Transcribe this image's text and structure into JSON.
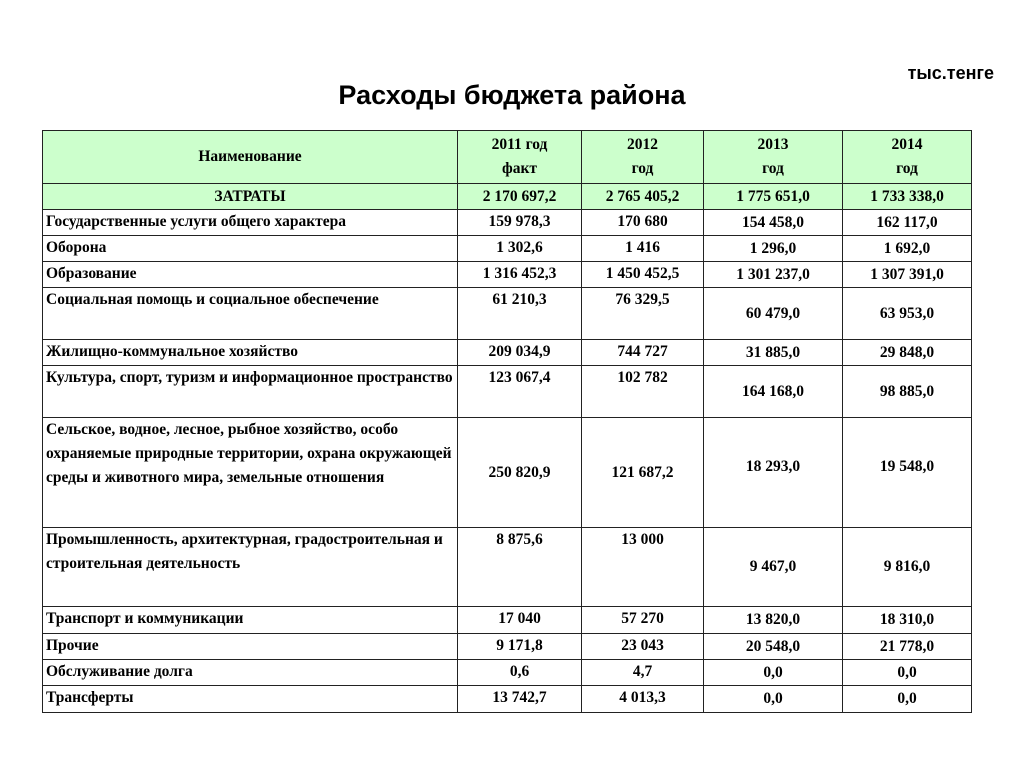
{
  "title": "Расходы бюджета района",
  "unit": "тыс.тенге",
  "table": {
    "header": {
      "name": "Наименование",
      "years": [
        {
          "year": "2011 год",
          "sub": "факт"
        },
        {
          "year": "2012",
          "sub": "год"
        },
        {
          "year": "2013",
          "sub": "год"
        },
        {
          "year": "2014",
          "sub": "год"
        }
      ]
    },
    "total": {
      "name": "ЗАТРАТЫ",
      "values": [
        "2 170 697,2",
        "2 765 405,2",
        "1 775 651,0",
        "1 733 338,0"
      ]
    },
    "rows": [
      {
        "name": "Государственные услуги общего характера",
        "values": [
          "159 978,3",
          "170 680",
          "154 458,0",
          "162 117,0"
        ]
      },
      {
        "name": "Оборона",
        "values": [
          "1 302,6",
          "1 416",
          "1 296,0",
          "1 692,0"
        ]
      },
      {
        "name": "Образование",
        "values": [
          "1 316 452,3",
          "1 450 452,5",
          "1 301 237,0",
          "1 307 391,0"
        ]
      },
      {
        "name": "Социальная помощь и социальное обеспечение",
        "values": [
          "61 210,3",
          "76 329,5",
          "60 479,0",
          "63 953,0"
        ]
      },
      {
        "name": "Жилищно-коммунальное хозяйство",
        "values": [
          "209 034,9",
          "744 727",
          "31 885,0",
          "29 848,0"
        ]
      },
      {
        "name": "Культура, спорт, туризм и информационное пространство",
        "values": [
          "123 067,4",
          "102 782",
          "164 168,0",
          "98 885,0"
        ]
      },
      {
        "name": "Сельское, водное, лесное, рыбное хозяйство, особо охраняемые природные территории, охрана окружающей среды и животного мира, земельные отношения",
        "values": [
          "250 820,9",
          "121 687,2",
          "18 293,0",
          "19 548,0"
        ]
      },
      {
        "name": "Промышленность, архитектурная, градостроительная и строительная деятельность",
        "values": [
          "8 875,6",
          "13 000",
          "9 467,0",
          "9 816,0"
        ]
      },
      {
        "name": "Транспорт и коммуникации",
        "values": [
          "17 040",
          "57 270",
          "13 820,0",
          "18 310,0"
        ]
      },
      {
        "name": "Прочие",
        "values": [
          "9 171,8",
          "23 043",
          "20 548,0",
          "21 778,0"
        ]
      },
      {
        "name": "Обслуживание долга",
        "values": [
          "0,6",
          "4,7",
          "0,0",
          "0,0"
        ]
      },
      {
        "name": "Трансферты",
        "values": [
          "13 742,7",
          "4 013,3",
          "0,0",
          "0,0"
        ]
      }
    ]
  },
  "colors": {
    "header_bg": "#ccffcc"
  }
}
